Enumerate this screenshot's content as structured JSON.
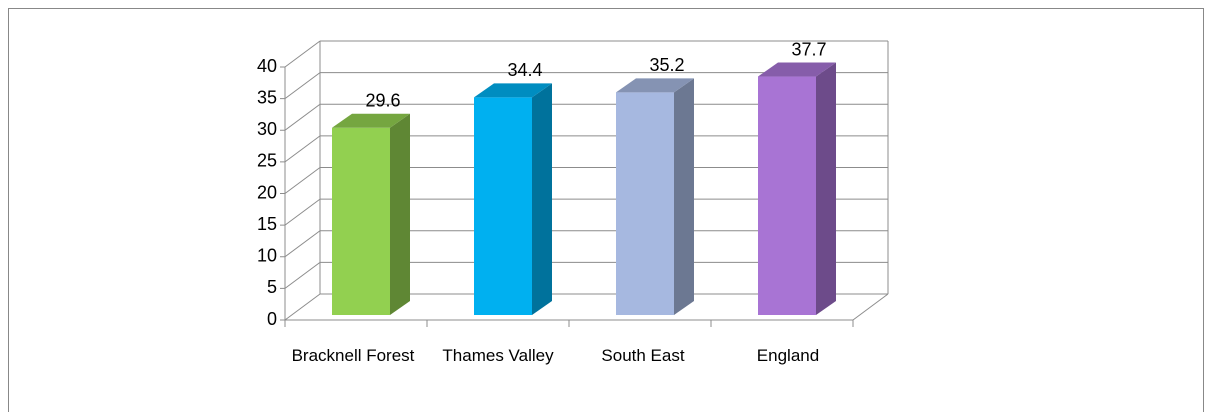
{
  "chart_data": {
    "type": "bar3d",
    "categories": [
      "Bracknell Forest",
      "Thames Valley",
      "South East",
      "England"
    ],
    "values": [
      29.6,
      34.4,
      35.2,
      37.7
    ],
    "colors": [
      "#92d050",
      "#00b0f0",
      "#a6b8e0",
      "#a874d4"
    ],
    "ylim": [
      0,
      40
    ],
    "yticks": [
      0,
      5,
      10,
      15,
      20,
      25,
      30,
      35,
      40
    ],
    "grid": true
  }
}
